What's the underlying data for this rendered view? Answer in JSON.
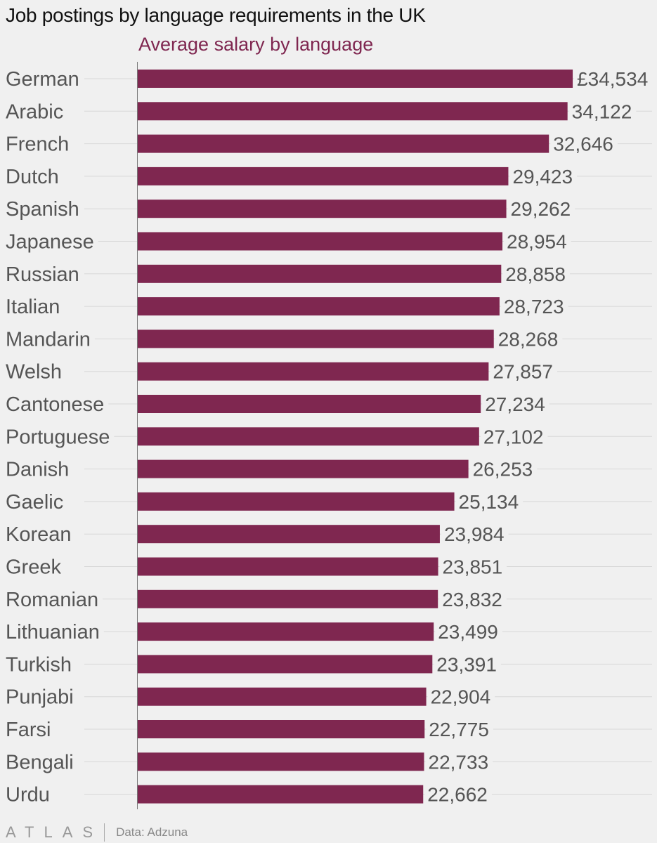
{
  "footer": {
    "brand": "ATLAS",
    "source": "Data: Adzuna"
  },
  "chart_data": {
    "type": "bar",
    "orientation": "horizontal",
    "title": "Job postings by language requirements in the UK",
    "subtitle": "Average salary by language",
    "xlabel": "",
    "ylabel": "",
    "xlim": [
      0,
      35200
    ],
    "grid": true,
    "bar_color": "#7f2750",
    "categories": [
      "German",
      "Arabic",
      "French",
      "Dutch",
      "Spanish",
      "Japanese",
      "Russian",
      "Italian",
      "Mandarin",
      "Welsh",
      "Cantonese",
      "Portuguese",
      "Danish",
      "Gaelic",
      "Korean",
      "Greek",
      "Romanian",
      "Lithuanian",
      "Turkish",
      "Punjabi",
      "Farsi",
      "Bengali",
      "Urdu"
    ],
    "values": [
      34534,
      34122,
      32646,
      29423,
      29262,
      28954,
      28858,
      28723,
      28268,
      27857,
      27234,
      27102,
      26253,
      25134,
      23984,
      23851,
      23832,
      23499,
      23391,
      22904,
      22775,
      22733,
      22662
    ],
    "value_labels": [
      "£34,534",
      "34,122",
      "32,646",
      "29,423",
      "29,262",
      "28,954",
      "28,858",
      "28,723",
      "28,268",
      "27,857",
      "27,234",
      "27,102",
      "26,253",
      "25,134",
      "23,984",
      "23,851",
      "23,832",
      "23,499",
      "23,391",
      "22,904",
      "22,775",
      "22,733",
      "22,662"
    ]
  }
}
